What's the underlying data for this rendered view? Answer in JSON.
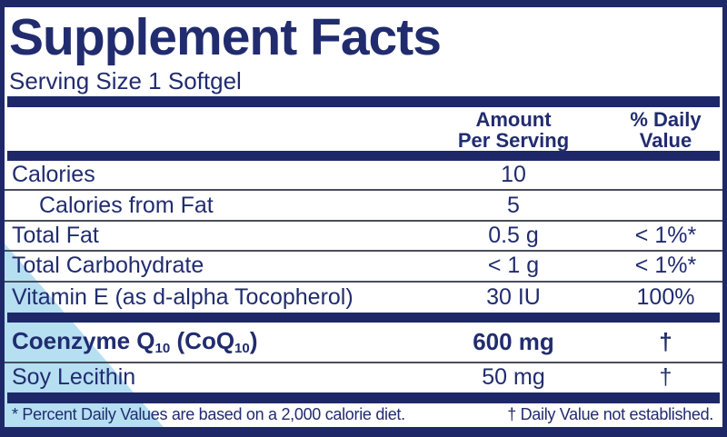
{
  "label": {
    "title": "Supplement Facts",
    "serving_size": "Serving Size 1 Softgel",
    "header": {
      "amount": [
        "Amount",
        "Per Serving"
      ],
      "daily_value": [
        "% Daily",
        "Value"
      ]
    },
    "rows": [
      {
        "name": "Calories",
        "amount": "10",
        "dv": ""
      },
      {
        "name": "Calories from Fat",
        "amount": "5",
        "dv": ""
      },
      {
        "name": "Total Fat",
        "amount": "0.5 g",
        "dv": "< 1%*"
      },
      {
        "name": "Total Carbohydrate",
        "amount": "< 1 g",
        "dv": "< 1%*"
      },
      {
        "name": "Vitamin E (as d-alpha Tocopherol)",
        "amount": "30 IU",
        "dv": "100%"
      }
    ],
    "coq_row": {
      "name_p1": "Coenzyme Q",
      "name_s1": "10",
      "name_p2": " (CoQ",
      "name_s2": "10",
      "name_p3": ")",
      "amount": "600 mg",
      "dv": "†"
    },
    "soy_row": {
      "name": "Soy Lecithin",
      "amount": "50 mg",
      "dv": "†"
    },
    "footnote": {
      "left": "* Percent Daily Values are based on a 2,000 calorie diet.",
      "right": "† Daily Value not established."
    }
  },
  "colors": {
    "navy": "#1e2869",
    "text": "#212c6f",
    "line": "#494e5e",
    "light_blue": "#b6dff2"
  }
}
